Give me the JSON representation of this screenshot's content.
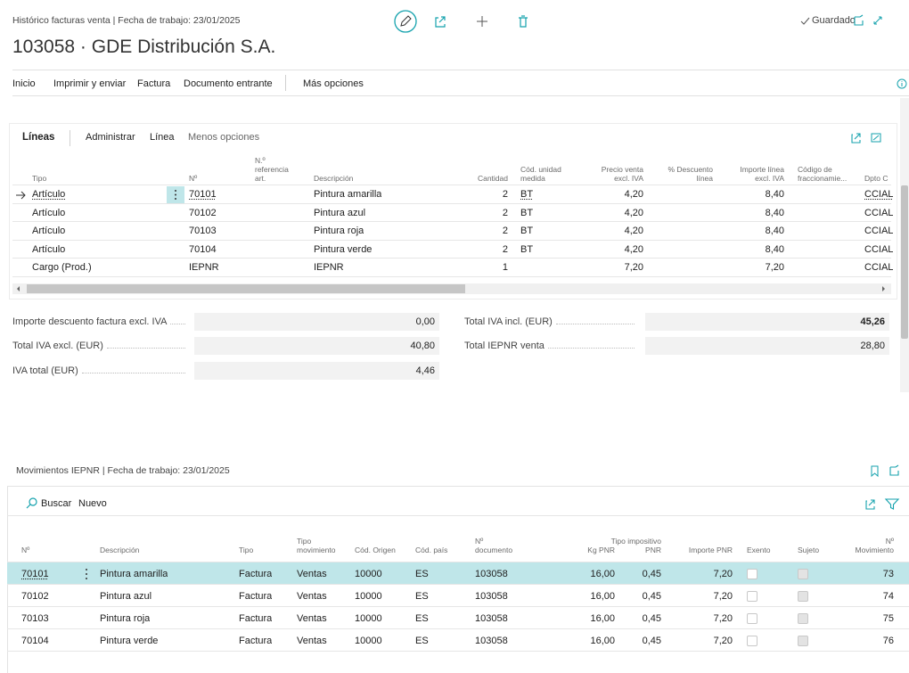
{
  "header": {
    "breadcrumb": "Histórico facturas venta | Fecha de trabajo: 23/01/2025",
    "title": "103058 · GDE Distribución S.A.",
    "status": "Guardado"
  },
  "menu": [
    "Inicio",
    "Imprimir y enviar",
    "Factura",
    "Documento entrante",
    "Más opciones"
  ],
  "lines": {
    "tabs": [
      "Líneas",
      "Administrar",
      "Línea",
      "Menos opciones"
    ],
    "columns": [
      "Tipo",
      "Nº",
      "N.º\nreferencia\nart.",
      "Descripción",
      "Cantidad",
      "Cód. unidad\nmedida",
      "Precio venta\nexcl. IVA",
      "% Descuento\nlínea",
      "Importe línea\nexcl. IVA",
      "Código de\nfraccionamie...",
      "Dpto C"
    ],
    "rows": [
      [
        "Artículo",
        "70101",
        null,
        "Pintura amarilla",
        "2",
        "BT",
        "4,20",
        null,
        "8,40",
        null,
        "CCIAL"
      ],
      [
        "Artículo",
        "70102",
        null,
        "Pintura azul",
        "2",
        "BT",
        "4,20",
        null,
        "8,40",
        null,
        "CCIAL"
      ],
      [
        "Artículo",
        "70103",
        null,
        "Pintura roja",
        "2",
        "BT",
        "4,20",
        null,
        "8,40",
        null,
        "CCIAL"
      ],
      [
        "Artículo",
        "70104",
        null,
        "Pintura verde",
        "2",
        "BT",
        "4,20",
        null,
        "8,40",
        null,
        "CCIAL"
      ],
      [
        "Cargo (Prod.)",
        "IEPNR",
        null,
        "IEPNR",
        "1",
        null,
        "7,20",
        null,
        "7,20",
        null,
        "CCIAL"
      ]
    ]
  },
  "totals": {
    "left": [
      {
        "label": "Importe descuento factura excl. IVA",
        "value": "0,00"
      },
      {
        "label": "Total IVA excl. (EUR)",
        "value": "40,80"
      },
      {
        "label": "IVA total (EUR)",
        "value": "4,46"
      }
    ],
    "right": [
      {
        "label": "Total IVA incl. (EUR)",
        "value": "45,26"
      },
      {
        "label": "Total IEPNR venta",
        "value": "28,80"
      }
    ]
  },
  "movements": {
    "title": "Movimientos IEPNR | Fecha de trabajo: 23/01/2025",
    "actions": [
      "Buscar",
      "Nuevo"
    ],
    "columns": [
      "Nº",
      "Descripción",
      "Tipo",
      "Tipo\nmovimiento",
      "Cód. Origen",
      "Cód. país",
      "Nº\ndocumento",
      "Kg PNR",
      "Tipo impositivo\nPNR",
      "Importe PNR",
      "Exento",
      "Sujeto",
      "Nº\nMovimiento"
    ],
    "rows": [
      [
        "70101",
        "Pintura amarilla",
        "Factura",
        "Ventas",
        "10000",
        "ES",
        "103058",
        "16,00",
        "0,45",
        "7,20",
        false,
        true,
        "73"
      ],
      [
        "70102",
        "Pintura azul",
        "Factura",
        "Ventas",
        "10000",
        "ES",
        "103058",
        "16,00",
        "0,45",
        "7,20",
        false,
        true,
        "74"
      ],
      [
        "70103",
        "Pintura roja",
        "Factura",
        "Ventas",
        "10000",
        "ES",
        "103058",
        "16,00",
        "0,45",
        "7,20",
        false,
        true,
        "75"
      ],
      [
        "70104",
        "Pintura verde",
        "Factura",
        "Ventas",
        "10000",
        "ES",
        "103058",
        "16,00",
        "0,45",
        "7,20",
        false,
        true,
        "76"
      ]
    ]
  }
}
